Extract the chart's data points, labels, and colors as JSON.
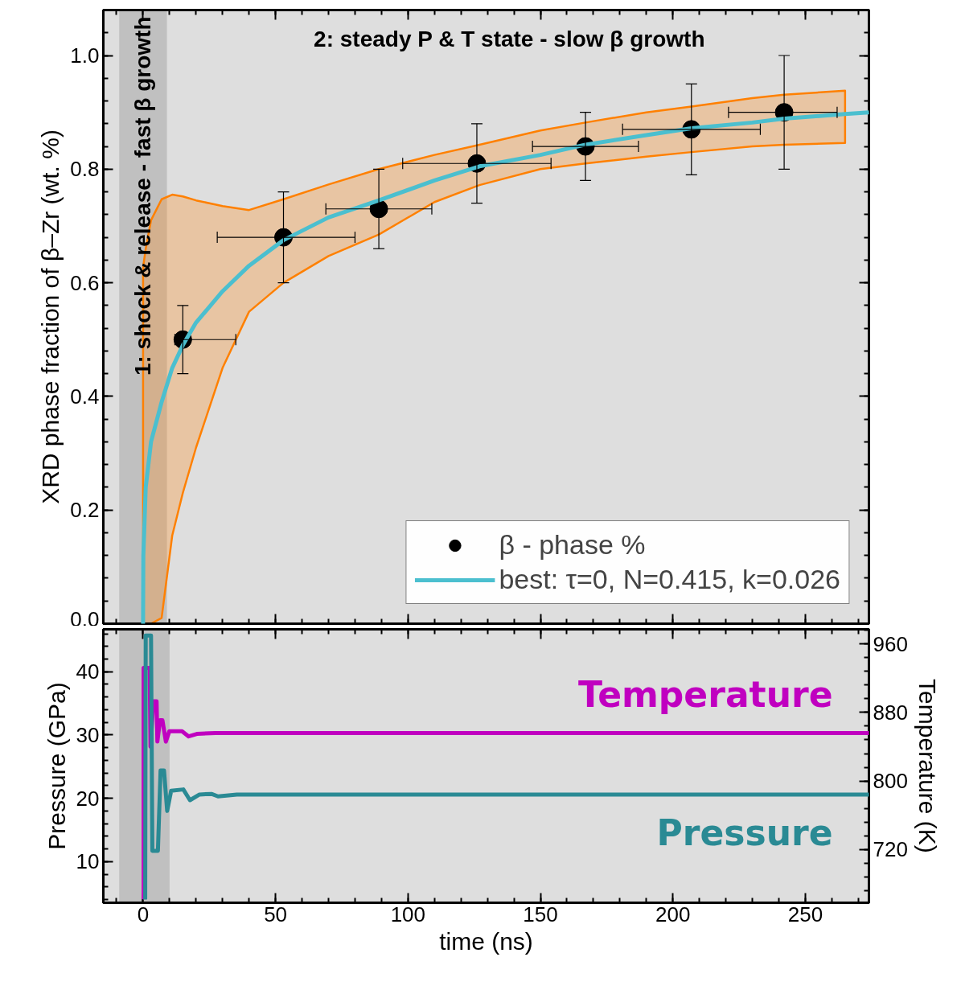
{
  "chart_data": [
    {
      "type": "scatter",
      "xlim": [
        -15,
        274
      ],
      "ylim": [
        0,
        1.08
      ],
      "xticks": [
        0,
        50,
        100,
        150,
        200,
        250
      ],
      "yticks": [
        {
          "value": 0,
          "label": "0.0"
        },
        {
          "value": 0.2,
          "label": "0.2"
        },
        {
          "value": 0.4,
          "label": "0.4"
        },
        {
          "value": 0.6,
          "label": "0.6"
        },
        {
          "value": 0.8,
          "label": "0.8"
        },
        {
          "value": 1.0,
          "label": "1.0"
        }
      ],
      "tick_labels": "y",
      "ylabel": "XRD phase fraction of β–Zr (wt. %)",
      "legend": "bottom right",
      "bands": [
        {
          "axis": "x",
          "from": -9,
          "to": 9,
          "label": "1: shock & release - fast β growth",
          "color": "#c0c0c0"
        }
      ],
      "annotations": [
        "2: steady P & T  state - slow β growth"
      ],
      "series": [
        {
          "name": "β - phase %",
          "type": "scatter",
          "marker": "circle",
          "color": "#000000",
          "x": [
            15,
            53,
            89,
            126,
            167,
            207,
            242
          ],
          "values": [
            0.5,
            0.68,
            0.73,
            0.81,
            0.84,
            0.87,
            0.9
          ],
          "errors": [
            0.06,
            0.08,
            0.07,
            0.07,
            [
              0.78,
              0.9
            ],
            [
              0.79,
              0.95
            ],
            [
              0.8,
              1.0
            ]
          ],
          "xerrors": [
            [
              12,
              35
            ],
            [
              28,
              80
            ],
            [
              69,
              109
            ],
            [
              98,
              154
            ],
            [
              147,
              187
            ],
            [
              181,
              233
            ],
            [
              221,
              262
            ]
          ]
        },
        {
          "name": "best: τ=0, N=0.415, k=0.026",
          "type": "line",
          "color": "#4bbfcf",
          "x": [
            0,
            0.1,
            1,
            3,
            7,
            11,
            15,
            20,
            30,
            40,
            53,
            70,
            89,
            110,
            127,
            150,
            167,
            190,
            207,
            230,
            242,
            265,
            274
          ],
          "values": [
            0,
            0.12,
            0.24,
            0.32,
            0.39,
            0.45,
            0.49,
            0.53,
            0.585,
            0.63,
            0.675,
            0.715,
            0.745,
            0.78,
            0.805,
            0.825,
            0.843,
            0.86,
            0.872,
            0.882,
            0.889,
            0.897,
            0.9
          ],
          "lower": [
            0,
            0,
            0,
            0,
            0.01,
            0.155,
            0.23,
            0.31,
            0.45,
            0.549,
            0.6,
            0.647,
            0.685,
            0.742,
            0.772,
            0.8,
            0.81,
            0.822,
            0.83,
            0.84,
            0.843,
            0.846,
            null
          ],
          "upper": [
            0.615,
            0.63,
            0.66,
            0.71,
            0.747,
            0.755,
            0.752,
            0.745,
            0.735,
            0.728,
            0.747,
            0.773,
            0.8,
            0.825,
            0.843,
            0.868,
            0.882,
            0.9,
            0.91,
            0.925,
            0.931,
            0.938,
            null
          ]
        }
      ]
    },
    {
      "type": "line",
      "xlim": [
        -15,
        274
      ],
      "xticks": [
        0,
        50,
        100,
        150,
        200,
        250
      ],
      "xlabel": "time (ns)",
      "ylabel": "Pressure (GPa)",
      "y2label": "Temperature (K)",
      "ylim": [
        3.5,
        46.7
      ],
      "yticks": [
        10,
        20,
        30,
        40
      ],
      "y2lim": [
        658,
        977
      ],
      "y2ticks": [
        720,
        800,
        880,
        960
      ],
      "legend": false,
      "bands": [
        {
          "axis": "x",
          "from": -9,
          "to": 10,
          "color": "#c0c0c0"
        }
      ],
      "series": [
        {
          "name": "Temperature",
          "axis": "y2",
          "color": "#c000c0",
          "x": [
            0.2,
            0.2,
            2.5,
            2.8,
            3.9,
            5.1,
            5.4,
            6.4,
            7.3,
            8.6,
            9.9,
            14.7,
            17.2,
            20.3,
            27.3,
            274
          ],
          "values": [
            662,
            932,
            932,
            840,
            893,
            893,
            846,
            871,
            871,
            846,
            858,
            858,
            852,
            855,
            856,
            856
          ]
        },
        {
          "name": "Pressure",
          "color": "#2a8a94",
          "x": [
            0.8,
            1.0,
            3.0,
            3.5,
            5.6,
            6.6,
            7.9,
            9.1,
            10.6,
            15.2,
            17.7,
            21.3,
            25.8,
            28.3,
            35.4,
            274
          ],
          "values": [
            4.0,
            45.7,
            45.7,
            11.7,
            11.7,
            24.4,
            24.4,
            18.0,
            21.2,
            21.4,
            19.7,
            20.6,
            20.7,
            20.3,
            20.6,
            20.6
          ]
        }
      ]
    }
  ]
}
